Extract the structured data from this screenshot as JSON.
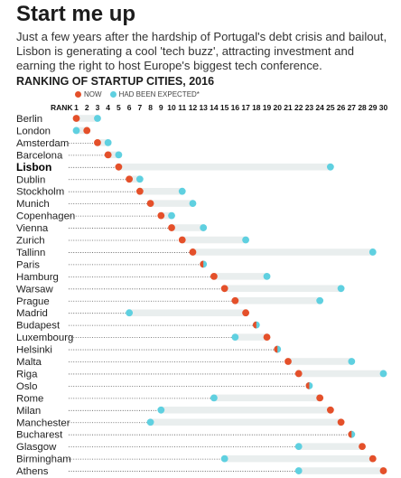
{
  "header": {
    "title": "Start me up",
    "intro": "Just a few years after the hardship of Portugal's debt crisis and bailout, Lisbon is generating a cool 'tech buzz', attracting investment and earning the right to host Europe's biggest tech conference."
  },
  "colors": {
    "now": "#e4502a",
    "expected": "#5fd0e0",
    "track": "#e9eeee",
    "leader": "#555555"
  },
  "chart_data": {
    "type": "scatter",
    "title": "RANKING OF STARTUP CITIES, 2016",
    "axis_label": "RANK",
    "x_ticks": [
      1,
      2,
      3,
      4,
      5,
      6,
      7,
      8,
      9,
      10,
      11,
      12,
      13,
      14,
      15,
      16,
      17,
      18,
      19,
      20,
      21,
      22,
      23,
      24,
      25,
      26,
      27,
      28,
      29,
      30
    ],
    "xlim": [
      1,
      30
    ],
    "legend": {
      "now": "NOW",
      "expected": "HAD BEEN EXPECTED*",
      "position": "top"
    },
    "highlight": "Lisbon",
    "cities": [
      {
        "name": "Berlin",
        "now": 1,
        "expected": 3
      },
      {
        "name": "London",
        "now": 2,
        "expected": 1
      },
      {
        "name": "Amsterdam",
        "now": 3,
        "expected": 4
      },
      {
        "name": "Barcelona",
        "now": 4,
        "expected": 5
      },
      {
        "name": "Lisbon",
        "now": 5,
        "expected": 25
      },
      {
        "name": "Dublin",
        "now": 6,
        "expected": 7
      },
      {
        "name": "Stockholm",
        "now": 7,
        "expected": 11
      },
      {
        "name": "Munich",
        "now": 8,
        "expected": 12
      },
      {
        "name": "Copenhagen",
        "now": 9,
        "expected": 10
      },
      {
        "name": "Vienna",
        "now": 10,
        "expected": 13
      },
      {
        "name": "Zurich",
        "now": 11,
        "expected": 17
      },
      {
        "name": "Tallinn",
        "now": 12,
        "expected": 29
      },
      {
        "name": "Paris",
        "now": 13,
        "expected": 13
      },
      {
        "name": "Hamburg",
        "now": 14,
        "expected": 19
      },
      {
        "name": "Warsaw",
        "now": 15,
        "expected": 26
      },
      {
        "name": "Prague",
        "now": 16,
        "expected": 24
      },
      {
        "name": "Madrid",
        "now": 17,
        "expected": 6
      },
      {
        "name": "Budapest",
        "now": 18,
        "expected": 18
      },
      {
        "name": "Luxembourg",
        "now": 19,
        "expected": 16
      },
      {
        "name": "Helsinki",
        "now": 20,
        "expected": 20
      },
      {
        "name": "Malta",
        "now": 21,
        "expected": 27
      },
      {
        "name": "Riga",
        "now": 22,
        "expected": 30
      },
      {
        "name": "Oslo",
        "now": 23,
        "expected": 23
      },
      {
        "name": "Rome",
        "now": 24,
        "expected": 14
      },
      {
        "name": "Milan",
        "now": 25,
        "expected": 9
      },
      {
        "name": "Manchester",
        "now": 26,
        "expected": 8
      },
      {
        "name": "Bucharest",
        "now": 27,
        "expected": 27
      },
      {
        "name": "Glasgow",
        "now": 28,
        "expected": 22
      },
      {
        "name": "Birmingham",
        "now": 29,
        "expected": 15
      },
      {
        "name": "Athens",
        "now": 30,
        "expected": 22
      }
    ]
  }
}
